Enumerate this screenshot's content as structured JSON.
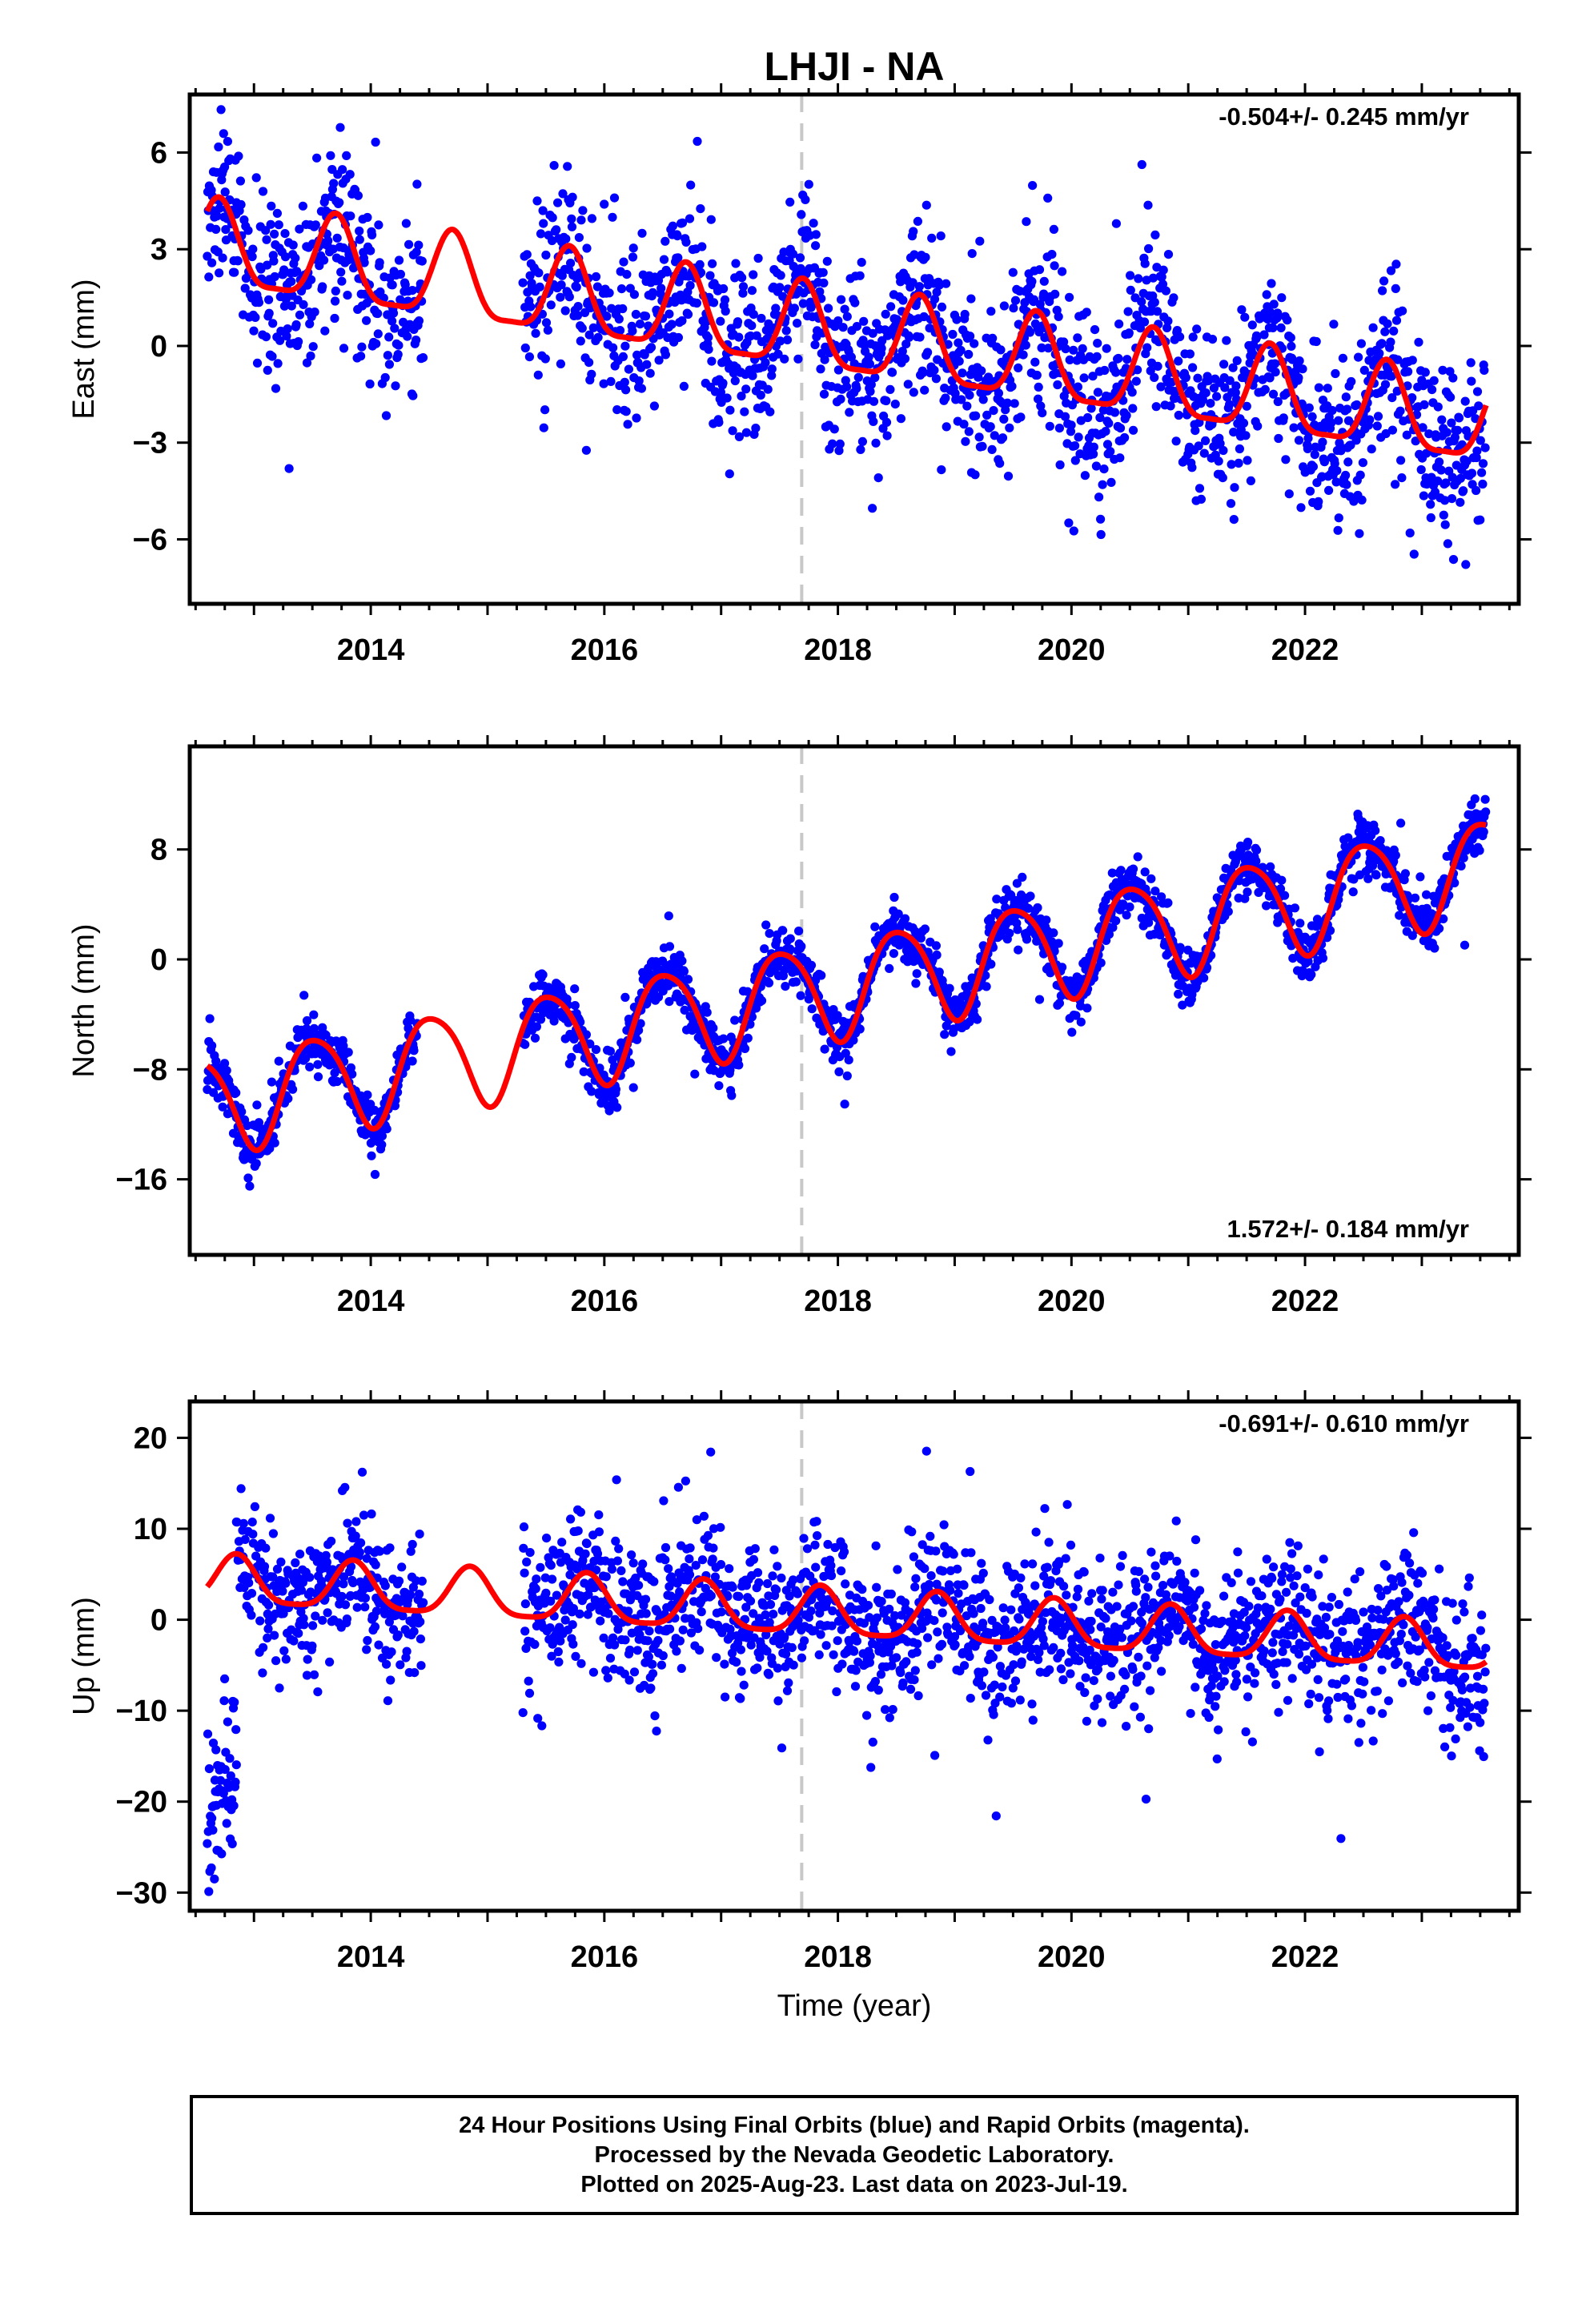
{
  "title": "LHJI - NA",
  "xlabel": "Time (year)",
  "caption": [
    "24 Hour Positions Using Final Orbits (blue) and Rapid Orbits (magenta).",
    "Processed by the Nevada Geodetic Laboratory.",
    "Plotted on 2025-Aug-23. Last data on 2023-Jul-19."
  ],
  "colors": {
    "points": "#0000ff",
    "fit": "#ff0000",
    "event_line": "#c8c8c8"
  },
  "chart_data": [
    {
      "type": "scatter",
      "ylabel": "East (mm)",
      "rate_label": "-0.504+/- 0.245 mm/yr",
      "rate_position": "top-right",
      "xlim": [
        2012.45,
        2023.83
      ],
      "ylim": [
        -8,
        7.8
      ],
      "xticks": [
        2014,
        2016,
        2018,
        2020,
        2022
      ],
      "yticks": [
        6,
        3,
        0,
        -3,
        -6
      ],
      "event_line_x": 2017.69,
      "data_span": [
        2012.6,
        2023.55
      ],
      "gap": [
        2014.45,
        2015.3
      ],
      "trend": {
        "t0": 2018,
        "intercept": 0.3,
        "rate": -0.504
      },
      "annual": {
        "amp": 1.3,
        "peak": 0.7
      },
      "semiannual": {
        "amp": 0.35,
        "peak": 0.2
      },
      "scatter_sd": 1.35,
      "fit_range": [
        2012.6,
        2023.55
      ]
    },
    {
      "type": "scatter",
      "ylabel": "North (mm)",
      "rate_label": "1.572+/- 0.184 mm/yr",
      "rate_position": "bottom-right",
      "xlim": [
        2012.45,
        2023.83
      ],
      "ylim": [
        -21.5,
        15.5
      ],
      "xticks": [
        2014,
        2016,
        2018,
        2020,
        2022
      ],
      "yticks": [
        8,
        0,
        -8,
        -16
      ],
      "event_line_x": 2017.69,
      "data_span": [
        2012.6,
        2023.55
      ],
      "gap": [
        2014.4,
        2015.3
      ],
      "trend": {
        "t0": 2018,
        "intercept": -2.0,
        "rate": 1.572
      },
      "annual": {
        "amp": 3.6,
        "peak": 0.52
      },
      "semiannual": {
        "amp": 0.5,
        "peak": 0.3
      },
      "scatter_sd": 1.0,
      "fit_range": [
        2012.6,
        2023.55
      ]
    },
    {
      "type": "scatter",
      "ylabel": "Up (mm)",
      "rate_label": "-0.691+/- 0.610 mm/yr",
      "rate_position": "top-right",
      "xlim": [
        2012.45,
        2023.83
      ],
      "ylim": [
        -32,
        24
      ],
      "xticks": [
        2014,
        2016,
        2018,
        2020,
        2022
      ],
      "yticks": [
        20,
        10,
        0,
        -10,
        -20,
        -30
      ],
      "event_line_x": 2017.69,
      "data_span": [
        2012.85,
        2023.55
      ],
      "gap": [
        2014.45,
        2015.3
      ],
      "early_outlier_segment": {
        "x_range": [
          2012.6,
          2012.85
        ],
        "y_center": -22,
        "spread": 5
      },
      "trend": {
        "t0": 2018,
        "intercept": 0.5,
        "rate": -0.691
      },
      "annual": {
        "amp": 2.6,
        "peak": 0.85
      },
      "semiannual": {
        "amp": 0.6,
        "peak": 0.35
      },
      "scatter_sd": 4.0,
      "fit_range": [
        2012.6,
        2023.55
      ]
    }
  ]
}
